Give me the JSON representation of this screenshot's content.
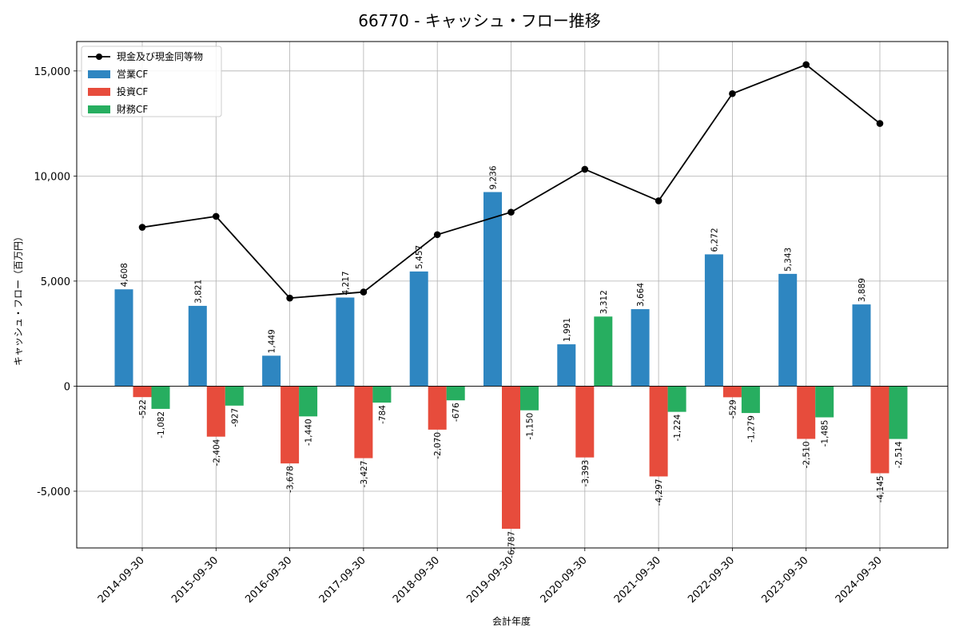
{
  "chart_data": {
    "type": "bar",
    "title": "66770 - キャッシュ・フロー推移",
    "xlabel": "会計年度",
    "ylabel": "キャッシュ・フロー（百万円）",
    "ylim": [
      -7700,
      16400
    ],
    "yticks": [
      -5000,
      0,
      5000,
      10000,
      15000
    ],
    "ytick_labels": [
      "-5,000",
      "0",
      "5,000",
      "10,000",
      "15,000"
    ],
    "grid": true,
    "legend_position": "top-left",
    "categories": [
      "2014-09-30",
      "2015-09-30",
      "2016-09-30",
      "2017-09-30",
      "2018-09-30",
      "2019-09-30",
      "2020-09-30",
      "2021-09-30",
      "2022-09-30",
      "2023-09-30",
      "2024-09-30"
    ],
    "series": [
      {
        "name": "営業CF",
        "kind": "bar",
        "color": "#2e86c1",
        "values": [
          4608,
          3821,
          1449,
          4217,
          5457,
          9236,
          1991,
          3664,
          6272,
          5343,
          3889
        ],
        "labels": [
          "4,608",
          "3,821",
          "1,449",
          "4,217",
          "5,457",
          "9,236",
          "1,991",
          "3,664",
          "6,272",
          "5,343",
          "3,889"
        ]
      },
      {
        "name": "投資CF",
        "kind": "bar",
        "color": "#e74c3c",
        "values": [
          -522,
          -2404,
          -3678,
          -3427,
          -2070,
          -6787,
          -3393,
          -4297,
          -529,
          -2510,
          -4145
        ],
        "labels": [
          "-522",
          "-2,404",
          "-3,678",
          "-3,427",
          "-2,070",
          "-6,787",
          "-3,393",
          "-4,297",
          "-529",
          "-2,510",
          "-4,145"
        ]
      },
      {
        "name": "財務CF",
        "kind": "bar",
        "color": "#27ae60",
        "values": [
          -1082,
          -927,
          -1440,
          -784,
          -676,
          -1150,
          3312,
          -1224,
          -1279,
          -1485,
          -2514
        ],
        "labels": [
          "-1,082",
          "-927",
          "-1,440",
          "-784",
          "-676",
          "-1,150",
          "3,312",
          "-1,224",
          "-1,279",
          "-1,485",
          "-2,514"
        ]
      },
      {
        "name": "現金及び現金同等物",
        "kind": "line",
        "color": "#000000",
        "values": [
          7560,
          8080,
          4190,
          4480,
          7210,
          8280,
          10320,
          8820,
          13920,
          15300,
          12500
        ]
      }
    ]
  }
}
